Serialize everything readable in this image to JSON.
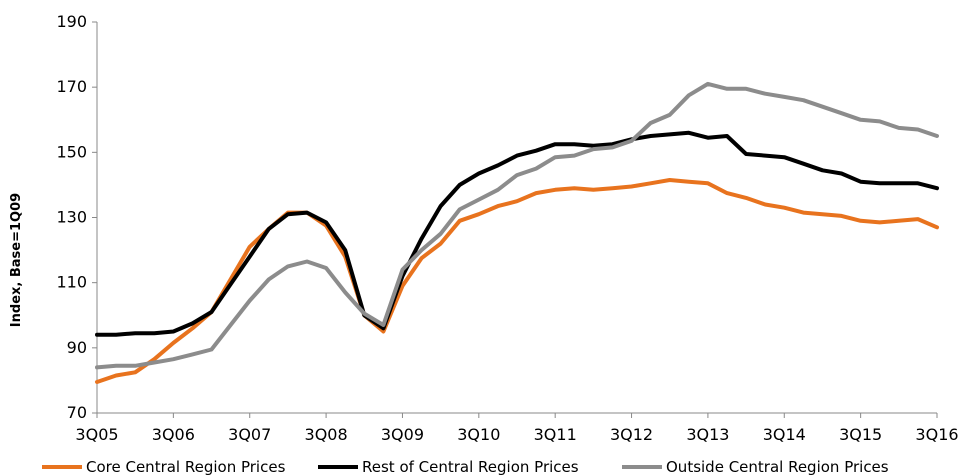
{
  "chart_data": {
    "type": "line",
    "title": "",
    "xlabel": "",
    "ylabel": "Index, Base=1Q09",
    "ylim": [
      70,
      190
    ],
    "yticks": [
      70,
      90,
      110,
      130,
      150,
      170,
      190
    ],
    "grid": false,
    "legend_position": "bottom",
    "x_tick_labels": [
      "3Q05",
      "3Q06",
      "3Q07",
      "3Q08",
      "3Q09",
      "3Q10",
      "3Q11",
      "3Q12",
      "3Q13",
      "3Q14",
      "3Q15",
      "3Q16"
    ],
    "x": [
      "3Q05",
      "4Q05",
      "1Q06",
      "2Q06",
      "3Q06",
      "4Q06",
      "1Q07",
      "2Q07",
      "3Q07",
      "4Q07",
      "1Q08",
      "2Q08",
      "3Q08",
      "4Q08",
      "1Q09",
      "2Q09",
      "3Q09",
      "4Q09",
      "1Q10",
      "2Q10",
      "3Q10",
      "4Q10",
      "1Q11",
      "2Q11",
      "3Q11",
      "4Q11",
      "1Q12",
      "2Q12",
      "3Q12",
      "4Q12",
      "1Q13",
      "2Q13",
      "3Q13",
      "4Q13",
      "1Q14",
      "2Q14",
      "3Q14",
      "4Q14",
      "1Q15",
      "2Q15",
      "3Q15",
      "4Q15",
      "1Q16",
      "2Q16",
      "3Q16"
    ],
    "series": [
      {
        "name": "Core Central Region Prices",
        "color": "#E8731E",
        "values": [
          79.5,
          81.5,
          82.5,
          86.5,
          91.5,
          96,
          101,
          111,
          121,
          126.5,
          131.5,
          131.5,
          127.5,
          118,
          100,
          95,
          109,
          117.5,
          122,
          129,
          131,
          133.5,
          135,
          137.5,
          138.5,
          139,
          138.5,
          139,
          139.5,
          140.5,
          141.5,
          141,
          140.5,
          137.5,
          136,
          134,
          133,
          131.5,
          131,
          130.5,
          129,
          128.5,
          129,
          129.5,
          127
        ]
      },
      {
        "name": "Rest of Central Region Prices",
        "color": "#000000",
        "values": [
          94,
          94,
          94.5,
          94.5,
          95,
          97.5,
          101,
          109.5,
          118,
          126.5,
          131,
          131.5,
          128.5,
          120,
          100,
          96,
          112,
          123.5,
          133.5,
          140,
          143.5,
          146,
          149,
          150.5,
          152.5,
          152.5,
          152,
          152.5,
          154,
          155,
          155.5,
          156,
          154.5,
          155,
          149.5,
          149,
          148.5,
          146.5,
          144.5,
          143.5,
          141,
          140.5,
          140.5,
          140.5,
          139
        ]
      },
      {
        "name": "Outside Central Region Prices",
        "color": "#8C8C8C",
        "values": [
          84,
          84.5,
          84.5,
          85.5,
          86.5,
          88,
          89.5,
          97,
          104.5,
          111,
          115,
          116.5,
          114.5,
          107,
          100.5,
          97,
          114,
          120,
          125,
          132.5,
          135.5,
          138.5,
          143,
          145,
          148.5,
          149,
          151,
          151.5,
          153.5,
          159,
          161.5,
          167.5,
          171,
          169.5,
          169.5,
          168,
          167,
          166,
          164,
          162,
          160,
          159.5,
          157.5,
          157,
          155
        ]
      }
    ]
  }
}
